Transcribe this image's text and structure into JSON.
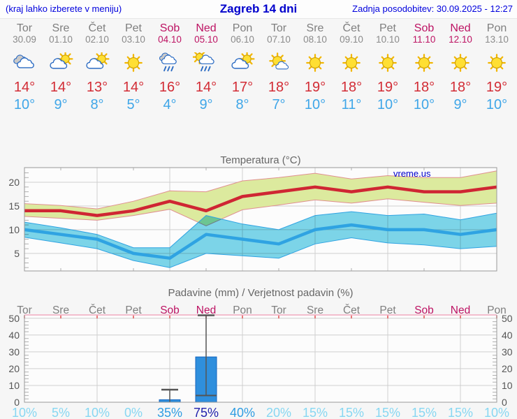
{
  "header": {
    "hint": "(kraj lahko izberete v meniju)",
    "title": "Zagreb 14 dni",
    "updated": "Zadnja posodobitev: 30.09.2025 - 12:27"
  },
  "watermark": "vreme.us",
  "colors": {
    "header_blue": "#0000cc",
    "temp_max_red": "#d22c35",
    "temp_min_blue": "#3fa6e8",
    "weekday_gray": "#7f7f7f",
    "weekend_crimson": "#bd1363",
    "grid": "#cfcfcf",
    "tick": "#b0b0b0",
    "border": "#999999",
    "plot_bg": "#fcfcfc",
    "band_max_fill": "#dcea9e",
    "band_max_edge": "#e09090",
    "band_min_fill": "#7dd7eb",
    "band_min_edge": "#2fa3e2",
    "line_max": "#cf2633",
    "line_min": "#2fa3e2",
    "bar_fill": "#2f8fdd",
    "bar_edge": "#1565c0",
    "whisker": "#555555",
    "precip_top_border": "#f0aabf",
    "precip_top_tick": "#e05050",
    "pop_low": "#87d7f2",
    "pop_mid": "#2f9de2",
    "pop_high": "#2222ad"
  },
  "days": [
    {
      "name": "Tor",
      "date": "30.09",
      "weekend": false,
      "icon": "cloudy",
      "tmax_label": "14°",
      "tmin_label": "10°",
      "pop_label": "10%"
    },
    {
      "name": "Sre",
      "date": "01.10",
      "weekend": false,
      "icon": "partly-cloudy",
      "tmax_label": "14°",
      "tmin_label": "9°",
      "pop_label": "5%"
    },
    {
      "name": "Čet",
      "date": "02.10",
      "weekend": false,
      "icon": "partly-cloudy",
      "tmax_label": "13°",
      "tmin_label": "8°",
      "pop_label": "10%"
    },
    {
      "name": "Pet",
      "date": "03.10",
      "weekend": false,
      "icon": "sunny",
      "tmax_label": "14°",
      "tmin_label": "5°",
      "pop_label": "0%"
    },
    {
      "name": "Sob",
      "date": "04.10",
      "weekend": true,
      "icon": "rain",
      "tmax_label": "16°",
      "tmin_label": "4°",
      "pop_label": "35%"
    },
    {
      "name": "Ned",
      "date": "05.10",
      "weekend": true,
      "icon": "sun-rain",
      "tmax_label": "14°",
      "tmin_label": "9°",
      "pop_label": "75%"
    },
    {
      "name": "Pon",
      "date": "06.10",
      "weekend": false,
      "icon": "partly-cloudy",
      "tmax_label": "17°",
      "tmin_label": "8°",
      "pop_label": "40%"
    },
    {
      "name": "Tor",
      "date": "07.10",
      "weekend": false,
      "icon": "mostly-sunny",
      "tmax_label": "18°",
      "tmin_label": "7°",
      "pop_label": "20%"
    },
    {
      "name": "Sre",
      "date": "08.10",
      "weekend": false,
      "icon": "sunny",
      "tmax_label": "19°",
      "tmin_label": "10°",
      "pop_label": "15%"
    },
    {
      "name": "Čet",
      "date": "09.10",
      "weekend": false,
      "icon": "sunny",
      "tmax_label": "18°",
      "tmin_label": "11°",
      "pop_label": "15%"
    },
    {
      "name": "Pet",
      "date": "10.10",
      "weekend": false,
      "icon": "sunny",
      "tmax_label": "19°",
      "tmin_label": "10°",
      "pop_label": "15%"
    },
    {
      "name": "Sob",
      "date": "11.10",
      "weekend": true,
      "icon": "sunny",
      "tmax_label": "18°",
      "tmin_label": "10°",
      "pop_label": "15%"
    },
    {
      "name": "Ned",
      "date": "12.10",
      "weekend": true,
      "icon": "sunny",
      "tmax_label": "18°",
      "tmin_label": "9°",
      "pop_label": "15%"
    },
    {
      "name": "Pon",
      "date": "13.10",
      "weekend": false,
      "icon": "sunny",
      "tmax_label": "19°",
      "tmin_label": "10°",
      "pop_label": "10%"
    }
  ],
  "chart_data": [
    {
      "type": "line",
      "title": "Temperatura (°C)",
      "categories": [
        "Tor 30.09",
        "Sre 01.10",
        "Čet 02.10",
        "Pet 03.10",
        "Sob 04.10",
        "Ned 05.10",
        "Pon 06.10",
        "Tor 07.10",
        "Sre 08.10",
        "Čet 09.10",
        "Pet 10.10",
        "Sob 11.10",
        "Ned 12.10",
        "Pon 13.10"
      ],
      "ylim": [
        1.3,
        23.1
      ],
      "yticks": [
        5,
        10,
        15,
        20
      ],
      "x_gridlines_at": [
        2,
        4,
        6,
        8,
        10,
        12
      ],
      "grid": true,
      "legend": "none",
      "series": [
        {
          "name": "max-temp",
          "values": [
            14,
            14,
            13,
            14,
            16,
            14,
            17,
            18,
            19,
            18,
            19,
            18,
            18,
            19
          ]
        },
        {
          "name": "max-temp-range-high",
          "values": [
            15.5,
            15.1,
            14.4,
            16,
            18.2,
            18,
            20.3,
            21,
            21.9,
            20.7,
            21.4,
            21,
            21,
            22.4
          ]
        },
        {
          "name": "max-temp-range-low",
          "values": [
            12.8,
            12.4,
            12,
            13,
            14.3,
            10.8,
            14.2,
            15.2,
            16.3,
            15.6,
            16.5,
            15.8,
            15.1,
            15.6
          ]
        },
        {
          "name": "min-temp",
          "values": [
            10,
            9,
            8,
            5,
            4,
            9,
            8,
            7,
            10,
            11,
            10,
            10,
            9,
            10
          ]
        },
        {
          "name": "min-temp-range-high",
          "values": [
            11.6,
            10.4,
            9,
            6.2,
            6.2,
            13,
            11.2,
            10,
            13,
            13.8,
            13,
            13.3,
            12.1,
            13.5
          ]
        },
        {
          "name": "min-temp-range-low",
          "values": [
            8.4,
            7.2,
            6,
            3.5,
            2,
            5,
            4.5,
            4,
            7,
            8.3,
            7.2,
            6.8,
            6,
            6.5
          ]
        }
      ]
    },
    {
      "type": "bar",
      "title": "Padavine (mm) / Verjetnost padavin (%)",
      "categories": [
        "Tor",
        "Sre",
        "Čet",
        "Pet",
        "Sob",
        "Ned",
        "Pon",
        "Tor",
        "Sre",
        "Čet",
        "Pet",
        "Sob",
        "Ned",
        "Pon"
      ],
      "ylim": [
        0,
        52
      ],
      "yticks": [
        0,
        10,
        20,
        30,
        40,
        50
      ],
      "x_gridlines_at": [
        2,
        4,
        6,
        8,
        10,
        12
      ],
      "values_mm": [
        0,
        0,
        0,
        0,
        1.5,
        27,
        0,
        0,
        0,
        0,
        0,
        0,
        0,
        0
      ],
      "range_mm": [
        [
          0,
          0
        ],
        [
          0,
          0
        ],
        [
          0,
          0
        ],
        [
          0,
          0
        ],
        [
          0,
          7.5
        ],
        [
          4,
          52
        ],
        [
          0,
          0
        ],
        [
          0,
          0
        ],
        [
          0,
          0
        ],
        [
          0,
          0
        ],
        [
          0,
          0
        ],
        [
          0,
          0
        ],
        [
          0,
          0
        ],
        [
          0,
          0
        ]
      ],
      "probability_pct": [
        10,
        5,
        10,
        0,
        35,
        75,
        40,
        20,
        15,
        15,
        15,
        15,
        15,
        10
      ]
    }
  ]
}
